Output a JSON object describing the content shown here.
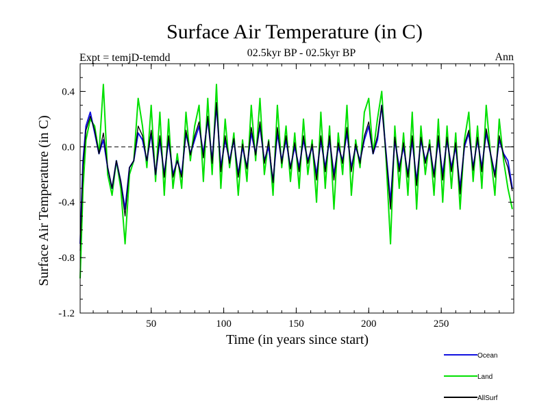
{
  "chart_data": {
    "type": "line",
    "title": "Surface Air Temperature (in C)",
    "subtitle": "02.5kyr BP - 02.5kyr BP",
    "experiment_label": "Expt = temjD-temdd",
    "period_label": "Ann",
    "xlabel": "Time (in years since start)",
    "ylabel": "Surface Air Temperature (in C)",
    "xlim": [
      1,
      300
    ],
    "ylim": [
      -1.2,
      0.6
    ],
    "x_ticks": [
      50,
      100,
      150,
      200,
      250
    ],
    "x_tick_labels": [
      "50",
      "100",
      "150",
      "200",
      "250"
    ],
    "y_ticks": [
      -1.2,
      -0.8,
      -0.4,
      0.0,
      0.4
    ],
    "y_tick_labels": [
      "-1.2",
      "-0.8",
      "-0.4",
      "0.0",
      "0.4"
    ],
    "zero_line": 0.0,
    "legend": [
      {
        "name": "Ocean",
        "color": "#1010e0"
      },
      {
        "name": "Land",
        "color": "#00e000"
      },
      {
        "name": "AllSurf",
        "color": "#000000"
      }
    ],
    "series": [
      {
        "name": "Land",
        "color": "#00e000",
        "x": [
          1,
          3,
          5,
          8,
          11,
          14,
          17,
          20,
          23,
          26,
          29,
          32,
          35,
          38,
          41,
          44,
          47,
          50,
          53,
          56,
          59,
          62,
          65,
          68,
          71,
          74,
          77,
          80,
          83,
          86,
          89,
          92,
          95,
          98,
          101,
          104,
          107,
          110,
          113,
          116,
          119,
          122,
          125,
          128,
          131,
          134,
          137,
          140,
          143,
          146,
          149,
          152,
          155,
          158,
          161,
          164,
          167,
          170,
          173,
          176,
          179,
          182,
          185,
          188,
          191,
          194,
          197,
          200,
          203,
          206,
          209,
          212,
          215,
          218,
          221,
          224,
          227,
          230,
          233,
          236,
          239,
          242,
          245,
          248,
          251,
          254,
          257,
          260,
          263,
          266,
          269,
          272,
          275,
          278,
          281,
          284,
          287,
          290,
          293,
          296,
          299
        ],
        "values": [
          -0.95,
          -0.3,
          0.05,
          0.2,
          0.15,
          -0.05,
          0.45,
          -0.2,
          -0.35,
          -0.1,
          -0.3,
          -0.7,
          -0.2,
          -0.1,
          0.35,
          0.15,
          -0.15,
          0.3,
          -0.25,
          0.25,
          -0.35,
          0.2,
          -0.3,
          -0.05,
          -0.3,
          0.25,
          -0.1,
          0.15,
          0.3,
          -0.25,
          0.35,
          -0.2,
          0.45,
          -0.3,
          0.2,
          -0.15,
          0.1,
          -0.35,
          0.05,
          -0.25,
          0.3,
          -0.1,
          0.35,
          -0.2,
          0.05,
          -0.35,
          0.3,
          -0.15,
          0.15,
          -0.25,
          0.1,
          -0.3,
          0.2,
          -0.2,
          0.05,
          -0.4,
          0.25,
          -0.3,
          0.15,
          -0.45,
          0.1,
          -0.2,
          0.3,
          -0.35,
          0.05,
          -0.15,
          0.25,
          0.35,
          -0.05,
          0.2,
          0.4,
          -0.1,
          -0.7,
          0.15,
          -0.3,
          0.1,
          -0.35,
          0.25,
          -0.45,
          0.15,
          -0.2,
          0.05,
          -0.35,
          0.2,
          -0.4,
          0.15,
          -0.3,
          0.1,
          -0.45,
          0.05,
          0.25,
          -0.25,
          0.15,
          -0.3,
          0.3,
          -0.05,
          -0.35,
          0.2,
          -0.1,
          -0.3,
          -0.45
        ]
      },
      {
        "name": "Ocean",
        "color": "#1010e0",
        "x": [
          1,
          3,
          5,
          8,
          11,
          14,
          17,
          20,
          23,
          26,
          29,
          32,
          35,
          38,
          41,
          44,
          47,
          50,
          53,
          56,
          59,
          62,
          65,
          68,
          71,
          74,
          77,
          80,
          83,
          86,
          89,
          92,
          95,
          98,
          101,
          104,
          107,
          110,
          113,
          116,
          119,
          122,
          125,
          128,
          131,
          134,
          137,
          140,
          143,
          146,
          149,
          152,
          155,
          158,
          161,
          164,
          167,
          170,
          173,
          176,
          179,
          182,
          185,
          188,
          191,
          194,
          197,
          200,
          203,
          206,
          209,
          212,
          215,
          218,
          221,
          224,
          227,
          230,
          233,
          236,
          239,
          242,
          245,
          248,
          251,
          254,
          257,
          260,
          263,
          266,
          269,
          272,
          275,
          278,
          281,
          284,
          287,
          290,
          293,
          296,
          299
        ],
        "values": [
          -0.7,
          -0.1,
          0.15,
          0.25,
          0.1,
          -0.05,
          0.05,
          -0.15,
          -0.3,
          -0.1,
          -0.25,
          -0.45,
          -0.15,
          -0.1,
          0.1,
          0.05,
          -0.1,
          0.1,
          -0.2,
          0.05,
          -0.2,
          0.05,
          -0.2,
          -0.1,
          -0.2,
          0.1,
          -0.05,
          0.05,
          0.15,
          -0.05,
          0.2,
          -0.1,
          0.3,
          -0.15,
          0.05,
          -0.1,
          0.05,
          -0.2,
          0.0,
          -0.15,
          0.1,
          -0.05,
          0.15,
          -0.1,
          0.0,
          -0.25,
          0.1,
          -0.1,
          0.05,
          -0.15,
          0.0,
          -0.15,
          0.05,
          -0.1,
          0.0,
          -0.2,
          0.05,
          -0.15,
          0.05,
          -0.2,
          0.0,
          -0.1,
          0.1,
          -0.15,
          0.0,
          -0.1,
          0.05,
          0.15,
          -0.05,
          0.05,
          0.3,
          -0.05,
          -0.4,
          0.05,
          -0.15,
          0.0,
          -0.2,
          0.05,
          -0.25,
          0.05,
          -0.1,
          0.0,
          -0.2,
          0.05,
          -0.2,
          0.05,
          -0.15,
          0.0,
          -0.3,
          0.0,
          0.1,
          -0.15,
          0.05,
          -0.15,
          0.1,
          -0.05,
          -0.2,
          0.05,
          -0.05,
          -0.1,
          -0.3
        ]
      },
      {
        "name": "AllSurf",
        "color": "#000000",
        "x": [
          1,
          3,
          5,
          8,
          11,
          14,
          17,
          20,
          23,
          26,
          29,
          32,
          35,
          38,
          41,
          44,
          47,
          50,
          53,
          56,
          59,
          62,
          65,
          68,
          71,
          74,
          77,
          80,
          83,
          86,
          89,
          92,
          95,
          98,
          101,
          104,
          107,
          110,
          113,
          116,
          119,
          122,
          125,
          128,
          131,
          134,
          137,
          140,
          143,
          146,
          149,
          152,
          155,
          158,
          161,
          164,
          167,
          170,
          173,
          176,
          179,
          182,
          185,
          188,
          191,
          194,
          197,
          200,
          203,
          206,
          209,
          212,
          215,
          218,
          221,
          224,
          227,
          230,
          233,
          236,
          239,
          242,
          245,
          248,
          251,
          254,
          257,
          260,
          263,
          266,
          269,
          272,
          275,
          278,
          281,
          284,
          287,
          290,
          293,
          296,
          299
        ],
        "values": [
          -0.75,
          -0.15,
          0.12,
          0.22,
          0.12,
          -0.05,
          0.1,
          -0.15,
          -0.3,
          -0.1,
          -0.25,
          -0.5,
          -0.15,
          -0.1,
          0.15,
          0.08,
          -0.1,
          0.12,
          -0.2,
          0.08,
          -0.22,
          0.08,
          -0.22,
          -0.1,
          -0.22,
          0.12,
          -0.06,
          0.08,
          0.18,
          -0.08,
          0.22,
          -0.12,
          0.32,
          -0.18,
          0.08,
          -0.12,
          0.06,
          -0.22,
          0.02,
          -0.16,
          0.14,
          -0.06,
          0.18,
          -0.12,
          0.04,
          -0.26,
          0.14,
          -0.12,
          0.08,
          -0.16,
          0.03,
          -0.18,
          0.08,
          -0.12,
          0.02,
          -0.24,
          0.08,
          -0.18,
          0.08,
          -0.24,
          0.03,
          -0.12,
          0.14,
          -0.18,
          0.02,
          -0.12,
          0.08,
          0.18,
          -0.05,
          0.08,
          0.3,
          -0.06,
          -0.45,
          0.07,
          -0.18,
          0.03,
          -0.22,
          0.08,
          -0.28,
          0.07,
          -0.12,
          0.02,
          -0.22,
          0.08,
          -0.24,
          0.07,
          -0.18,
          0.03,
          -0.34,
          0.02,
          0.12,
          -0.17,
          0.07,
          -0.18,
          0.13,
          -0.05,
          -0.22,
          0.08,
          -0.06,
          -0.15,
          -0.32
        ]
      }
    ]
  }
}
